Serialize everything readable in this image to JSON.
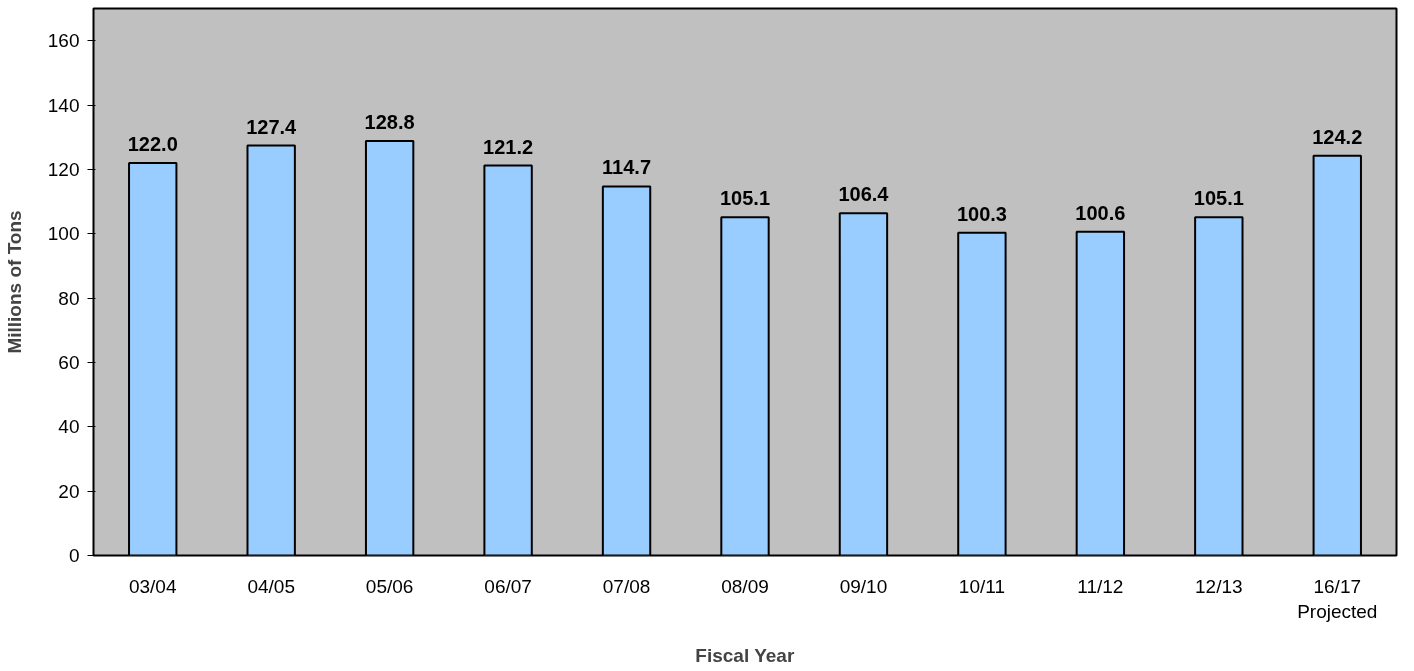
{
  "chart_data": {
    "type": "bar",
    "xlabel": "Fiscal Year",
    "ylabel": "Millions of Tons",
    "categories": [
      "03/04",
      "04/05",
      "05/06",
      "06/07",
      "07/08",
      "08/09",
      "09/10",
      "10/11",
      "11/12",
      "12/13",
      "16/17"
    ],
    "values": [
      122.0,
      127.4,
      128.8,
      121.2,
      114.7,
      105.1,
      106.4,
      100.3,
      100.6,
      105.1,
      124.2
    ],
    "value_labels": [
      "122.0",
      "127.4",
      "128.8",
      "121.2",
      "114.7",
      "105.1",
      "106.4",
      "100.3",
      "100.6",
      "105.1",
      "124.2"
    ],
    "color": "#99ccff",
    "ylim": [
      0,
      170
    ],
    "yticks": [
      0,
      20,
      40,
      60,
      80,
      100,
      120,
      140,
      160
    ],
    "grid": false,
    "annotations": [
      "Projected"
    ]
  }
}
